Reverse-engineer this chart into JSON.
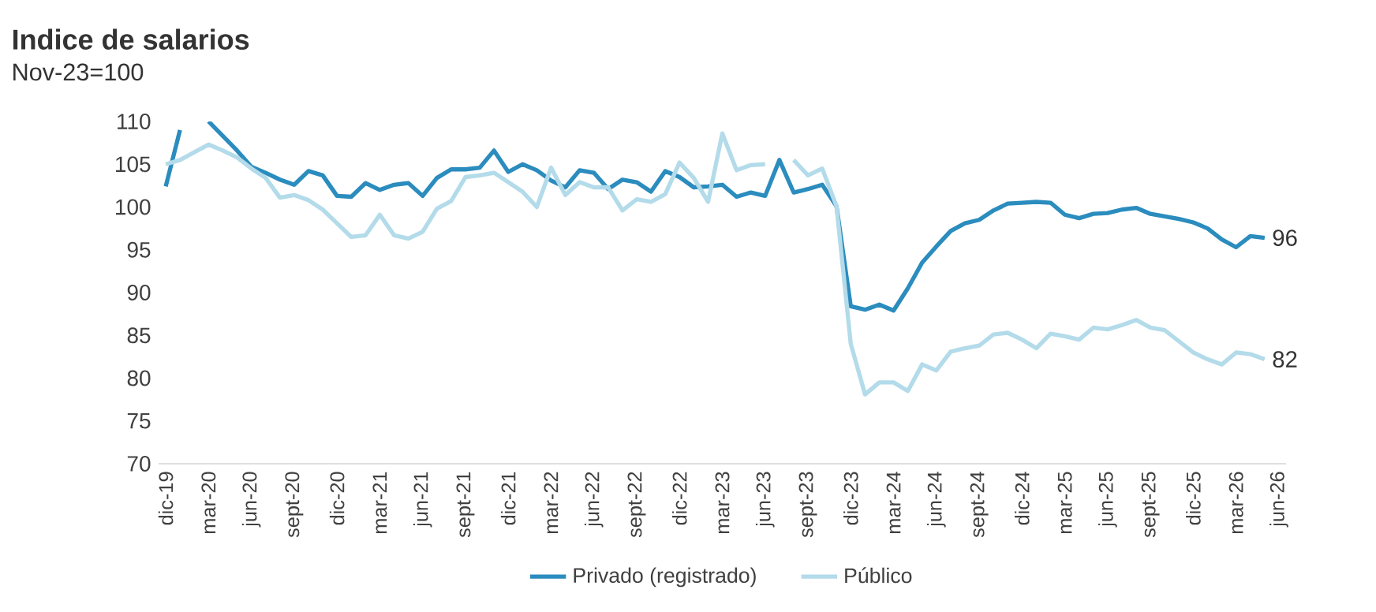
{
  "chart_data": {
    "type": "line",
    "title": "Indice de salarios",
    "subtitle": "Nov-23=100",
    "categories": [
      "dic-19",
      null,
      null,
      "mar-20",
      null,
      null,
      "jun-20",
      null,
      null,
      "sept-20",
      null,
      null,
      "dic-20",
      null,
      null,
      "mar-21",
      null,
      null,
      "jun-21",
      null,
      null,
      "sept-21",
      null,
      null,
      "dic-21",
      null,
      null,
      "mar-22",
      null,
      null,
      "jun-22",
      null,
      null,
      "sept-22",
      null,
      null,
      "dic-22",
      null,
      null,
      "mar-23",
      null,
      null,
      "jun-23",
      null,
      null,
      "sept-23",
      null,
      null,
      "dic-23",
      null,
      null,
      "mar-24",
      null,
      null,
      "jun-24",
      null,
      null,
      "sept-24",
      null,
      null,
      "dic-24",
      null,
      null,
      "mar-25",
      null,
      null,
      "jun-25",
      null,
      null,
      "sept-25",
      null,
      null,
      "dic-25",
      null,
      null,
      "mar-26",
      null,
      null,
      "jun-26"
    ],
    "series": [
      {
        "name": "Privado (registrado)",
        "color": "#2b8cbe",
        "values": [
          102.4,
          109,
          null,
          110,
          108.3,
          106.6,
          104.7,
          104.0,
          103.2,
          102.6,
          104.2,
          103.7,
          101.3,
          101.2,
          102.8,
          102.0,
          102.6,
          102.8,
          101.3,
          103.4,
          104.4,
          104.4,
          104.6,
          106.6,
          104.1,
          105.0,
          104.3,
          103.1,
          102.3,
          104.3,
          104.0,
          102.1,
          103.2,
          102.9,
          101.8,
          104.2,
          103.5,
          102.3,
          102.4,
          102.6,
          101.2,
          101.7,
          101.3,
          105.5,
          101.7,
          102.1,
          102.6,
          100.1,
          88.4,
          88.0,
          88.6,
          87.9,
          90.5,
          93.5,
          95.4,
          97.2,
          98.1,
          98.5,
          99.6,
          100.4,
          100.5,
          100.6,
          100.5,
          99.1,
          98.7,
          99.2,
          99.3,
          99.7,
          99.9,
          99.2,
          98.9,
          98.6,
          98.2,
          97.5,
          96.2,
          95.3,
          96.6,
          96.4,
          null
        ],
        "value_labels": [
          null,
          null,
          null,
          null,
          null,
          null,
          null,
          null,
          null,
          null,
          null,
          null,
          null,
          null,
          null,
          null,
          null,
          null,
          null,
          null,
          null,
          null,
          null,
          null,
          null,
          null,
          null,
          null,
          null,
          null,
          null,
          null,
          null,
          null,
          null,
          null,
          null,
          null,
          null,
          null,
          null,
          null,
          null,
          null,
          null,
          null,
          null,
          null,
          null,
          null,
          null,
          null,
          null,
          null,
          null,
          null,
          null,
          null,
          null,
          null,
          null,
          null,
          null,
          null,
          null,
          null,
          null,
          null,
          null,
          null,
          null,
          null,
          null,
          null,
          null,
          null,
          null,
          "96",
          null
        ]
      },
      {
        "name": "Público",
        "color": "#b3dbea",
        "values": [
          105.0,
          105.5,
          106.4,
          107.3,
          106.6,
          105.8,
          104.5,
          103.4,
          101.1,
          101.4,
          100.8,
          99.7,
          98.1,
          96.5,
          96.7,
          99.1,
          96.7,
          96.3,
          97.1,
          99.8,
          100.7,
          103.5,
          103.7,
          104.0,
          102.9,
          101.8,
          100.0,
          104.6,
          101.4,
          102.9,
          102.3,
          102.3,
          99.6,
          100.9,
          100.6,
          101.5,
          105.2,
          103.4,
          100.6,
          108.6,
          104.3,
          104.9,
          105.0,
          null,
          105.5,
          103.7,
          104.5,
          100.1,
          84.0,
          78.1,
          79.5,
          79.5,
          78.5,
          81.6,
          80.9,
          83.1,
          83.5,
          83.8,
          85.1,
          85.3,
          84.5,
          83.5,
          85.2,
          84.9,
          84.5,
          85.9,
          85.7,
          86.2,
          86.8,
          85.9,
          85.6,
          84.3,
          83.0,
          82.2,
          81.6,
          83.0,
          82.8,
          82.2,
          null
        ],
        "value_labels": [
          null,
          null,
          null,
          null,
          null,
          null,
          null,
          null,
          null,
          null,
          null,
          null,
          null,
          null,
          null,
          null,
          null,
          null,
          null,
          null,
          null,
          null,
          null,
          null,
          null,
          null,
          null,
          null,
          null,
          null,
          null,
          null,
          null,
          null,
          null,
          null,
          null,
          null,
          null,
          null,
          null,
          null,
          null,
          null,
          null,
          null,
          null,
          null,
          null,
          null,
          null,
          null,
          null,
          null,
          null,
          null,
          null,
          null,
          null,
          null,
          null,
          null,
          null,
          null,
          null,
          null,
          null,
          null,
          null,
          null,
          null,
          null,
          null,
          null,
          null,
          null,
          null,
          "82",
          null
        ]
      }
    ],
    "ylim": [
      70,
      110
    ],
    "yticks": [
      70,
      75,
      80,
      85,
      90,
      95,
      100,
      105,
      110
    ],
    "legend": "bottom",
    "marker": "none",
    "line_style": "solid",
    "grid": false
  }
}
